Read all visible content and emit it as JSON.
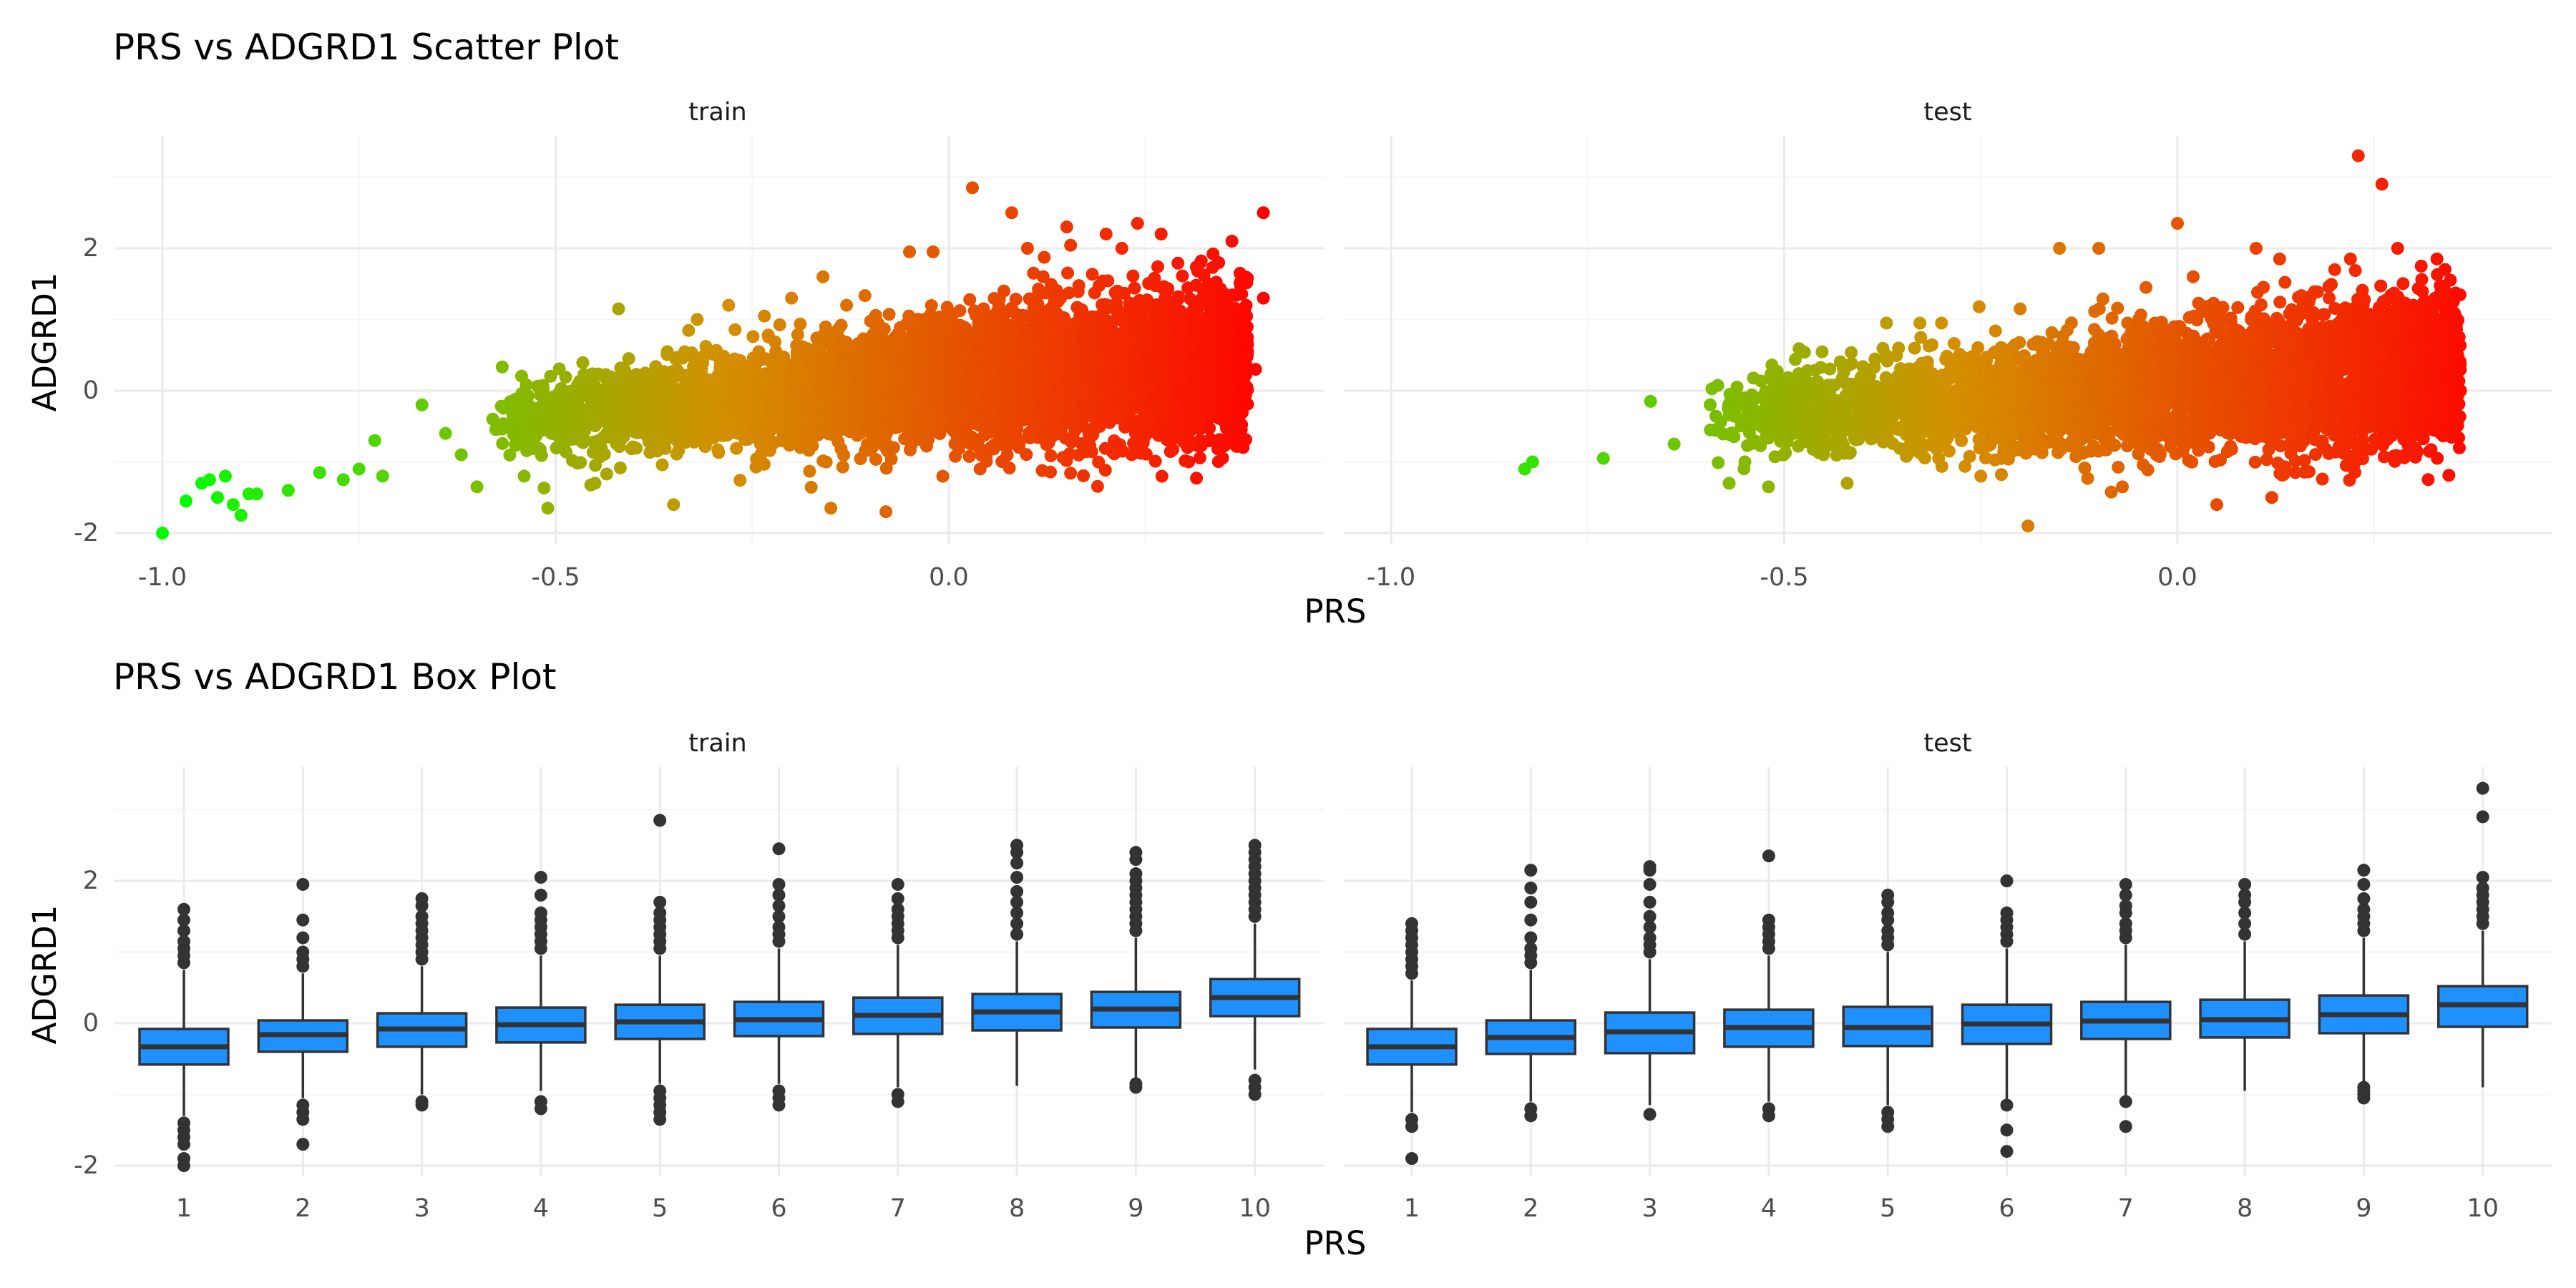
{
  "colors": {
    "grid_major": "#ebebeb",
    "grid_minor": "#f5f5f5",
    "box_fill": "#1e90ff",
    "box_line": "#333333",
    "point_low": "#00ff00",
    "point_mid": "#d39000",
    "point_high": "#ff0000"
  },
  "scatter_title": "PRS vs ADGRD1 Scatter Plot",
  "box_title": "PRS vs ADGRD1 Box Plot",
  "chart_data": [
    {
      "type": "scatter",
      "title": "PRS vs ADGRD1 Scatter Plot",
      "xlabel": "PRS",
      "ylabel": "ADGRD1",
      "facets": [
        "train",
        "test"
      ],
      "xlim": [
        -1.06,
        0.48
      ],
      "ylim": [
        -2.2,
        3.5
      ],
      "x_ticks": [
        -1.0,
        -0.5,
        0.0
      ],
      "x_tick_labels": [
        "-1.0",
        "-0.5",
        "0.0"
      ],
      "y_ticks": [
        -2,
        0,
        2
      ],
      "y_tick_labels": [
        "-2",
        "0",
        "2"
      ],
      "color_scale": {
        "low": "#00ff00",
        "high": "#ff0000",
        "variable": "PRS"
      },
      "grid": true,
      "legend": "none",
      "series": [
        {
          "name": "train",
          "points": [
            [
              -1.0,
              -2.0
            ],
            [
              -0.97,
              -1.55
            ],
            [
              -0.95,
              -1.3
            ],
            [
              -0.94,
              -1.25
            ],
            [
              -0.93,
              -1.5
            ],
            [
              -0.92,
              -1.2
            ],
            [
              -0.91,
              -1.6
            ],
            [
              -0.9,
              -1.75
            ],
            [
              -0.89,
              -1.45
            ],
            [
              -0.88,
              -1.45
            ],
            [
              -0.84,
              -1.4
            ],
            [
              -0.8,
              -1.15
            ],
            [
              -0.77,
              -1.25
            ],
            [
              -0.75,
              -1.1
            ],
            [
              -0.73,
              -0.7
            ],
            [
              -0.72,
              -1.2
            ],
            [
              -0.67,
              -0.2
            ],
            [
              -0.64,
              -0.6
            ],
            [
              -0.62,
              -0.9
            ],
            [
              -0.6,
              -1.35
            ],
            [
              -0.58,
              -0.4
            ],
            [
              -0.54,
              -1.2
            ],
            [
              -0.51,
              -1.65
            ],
            [
              -0.45,
              -1.3
            ],
            [
              -0.42,
              1.15
            ],
            [
              -0.35,
              -1.6
            ],
            [
              -0.32,
              1.0
            ],
            [
              -0.28,
              1.2
            ],
            [
              -0.2,
              1.3
            ],
            [
              -0.16,
              1.6
            ],
            [
              -0.15,
              -1.65
            ],
            [
              -0.13,
              1.2
            ],
            [
              -0.08,
              -1.7
            ],
            [
              -0.05,
              1.95
            ],
            [
              -0.02,
              1.95
            ],
            [
              0.03,
              2.85
            ],
            [
              0.07,
              1.4
            ],
            [
              0.08,
              2.5
            ],
            [
              0.12,
              1.6
            ],
            [
              0.15,
              2.3
            ],
            [
              0.2,
              2.2
            ],
            [
              0.24,
              2.35
            ],
            [
              0.27,
              2.2
            ],
            [
              0.32,
              1.8
            ],
            [
              0.36,
              1.0
            ],
            [
              0.37,
              0.3
            ],
            [
              0.38,
              0.65
            ],
            [
              0.39,
              0.3
            ],
            [
              0.4,
              2.5
            ],
            [
              0.4,
              1.3
            ],
            [
              0.36,
              2.1
            ],
            [
              0.33,
              1.5
            ],
            [
              0.22,
              2.0
            ],
            [
              0.1,
              2.0
            ],
            [
              0.3,
              0.0
            ]
          ]
        },
        {
          "name": "test",
          "points": [
            [
              -0.83,
              -1.1
            ],
            [
              -0.82,
              -1.0
            ],
            [
              -0.73,
              -0.95
            ],
            [
              -0.67,
              -0.15
            ],
            [
              -0.64,
              -0.75
            ],
            [
              -0.57,
              -1.3
            ],
            [
              -0.56,
              0.05
            ],
            [
              -0.55,
              -1.0
            ],
            [
              -0.52,
              -1.35
            ],
            [
              -0.45,
              -0.9
            ],
            [
              -0.42,
              -1.3
            ],
            [
              -0.37,
              0.95
            ],
            [
              -0.3,
              0.95
            ],
            [
              -0.25,
              -1.2
            ],
            [
              -0.2,
              1.15
            ],
            [
              -0.19,
              -1.9
            ],
            [
              -0.15,
              2.0
            ],
            [
              -0.1,
              2.0
            ],
            [
              -0.07,
              -1.35
            ],
            [
              -0.04,
              1.45
            ],
            [
              0.0,
              2.35
            ],
            [
              0.02,
              1.6
            ],
            [
              0.05,
              -1.6
            ],
            [
              0.1,
              2.0
            ],
            [
              0.12,
              -1.5
            ],
            [
              0.13,
              1.85
            ],
            [
              0.2,
              1.7
            ],
            [
              0.22,
              1.85
            ],
            [
              0.23,
              3.3
            ],
            [
              0.26,
              2.9
            ],
            [
              0.31,
              1.75
            ],
            [
              0.33,
              1.85
            ],
            [
              0.34,
              -0.55
            ],
            [
              0.35,
              0.5
            ],
            [
              0.36,
              0.0
            ],
            [
              0.34,
              1.15
            ],
            [
              0.28,
              2.0
            ],
            [
              0.3,
              1.2
            ],
            [
              0.15,
              -1.15
            ],
            [
              0.3,
              -0.5
            ]
          ]
        }
      ],
      "density_clusters": [
        {
          "facet": "train",
          "x": [
            -0.58,
            0.38
          ],
          "center_slope": 0.9,
          "center_intercept": 0.1,
          "spread": 0.45,
          "n": 5000
        },
        {
          "facet": "test",
          "x": [
            -0.6,
            0.36
          ],
          "center_slope": 0.75,
          "center_intercept": 0.05,
          "spread": 0.45,
          "n": 4000
        }
      ]
    },
    {
      "type": "box",
      "title": "PRS vs ADGRD1 Box Plot",
      "xlabel": "PRS",
      "ylabel": "ADGRD1",
      "facets": [
        "train",
        "test"
      ],
      "categories": [
        "1",
        "2",
        "3",
        "4",
        "5",
        "6",
        "7",
        "8",
        "9",
        "10"
      ],
      "ylim": [
        -2.2,
        3.5
      ],
      "y_ticks": [
        -2,
        0,
        2
      ],
      "y_tick_labels": [
        "-2",
        "0",
        "2"
      ],
      "grid": true,
      "legend": "none",
      "series": [
        {
          "name": "train",
          "boxes": [
            {
              "q1": -0.58,
              "median": -0.33,
              "q3": -0.08,
              "lo": -1.3,
              "hi": 0.75,
              "outliers_low": [
                -1.4,
                -1.5,
                -1.6,
                -1.7,
                -1.9,
                -2.0
              ],
              "outliers_high": [
                0.85,
                0.95,
                1.05,
                1.15,
                1.3,
                1.45,
                1.6
              ]
            },
            {
              "q1": -0.4,
              "median": -0.16,
              "q3": 0.04,
              "lo": -1.05,
              "hi": 0.7,
              "outliers_low": [
                -1.15,
                -1.25,
                -1.35,
                -1.7
              ],
              "outliers_high": [
                0.8,
                0.9,
                1.0,
                1.2,
                1.45,
                1.95
              ]
            },
            {
              "q1": -0.33,
              "median": -0.08,
              "q3": 0.14,
              "lo": -1.0,
              "hi": 0.8,
              "outliers_low": [
                -1.1,
                -1.15
              ],
              "outliers_high": [
                0.9,
                1.0,
                1.1,
                1.2,
                1.3,
                1.4,
                1.5,
                1.65,
                1.75
              ]
            },
            {
              "q1": -0.27,
              "median": -0.02,
              "q3": 0.22,
              "lo": -0.95,
              "hi": 0.95,
              "outliers_low": [
                -1.1,
                -1.2
              ],
              "outliers_high": [
                1.05,
                1.15,
                1.25,
                1.35,
                1.45,
                1.55,
                1.8,
                2.05
              ]
            },
            {
              "q1": -0.22,
              "median": 0.02,
              "q3": 0.26,
              "lo": -0.85,
              "hi": 0.95,
              "outliers_low": [
                -0.95,
                -1.05,
                -1.15,
                -1.25,
                -1.35
              ],
              "outliers_high": [
                1.05,
                1.15,
                1.25,
                1.35,
                1.45,
                1.55,
                1.7,
                2.85
              ]
            },
            {
              "q1": -0.18,
              "median": 0.05,
              "q3": 0.3,
              "lo": -0.85,
              "hi": 1.05,
              "outliers_low": [
                -0.95,
                -1.05,
                -1.15
              ],
              "outliers_high": [
                1.15,
                1.25,
                1.35,
                1.5,
                1.65,
                1.8,
                1.95,
                2.45
              ]
            },
            {
              "q1": -0.15,
              "median": 0.11,
              "q3": 0.36,
              "lo": -0.9,
              "hi": 1.1,
              "outliers_low": [
                -1.0,
                -1.1
              ],
              "outliers_high": [
                1.2,
                1.3,
                1.4,
                1.5,
                1.6,
                1.75,
                1.95
              ]
            },
            {
              "q1": -0.1,
              "median": 0.16,
              "q3": 0.41,
              "lo": -0.88,
              "hi": 1.15,
              "outliers_low": [],
              "outliers_high": [
                1.25,
                1.4,
                1.55,
                1.7,
                1.85,
                2.05,
                2.25,
                2.4,
                2.5
              ]
            },
            {
              "q1": -0.06,
              "median": 0.2,
              "q3": 0.44,
              "lo": -0.8,
              "hi": 1.2,
              "outliers_low": [
                -0.85,
                -0.9
              ],
              "outliers_high": [
                1.3,
                1.4,
                1.5,
                1.6,
                1.7,
                1.8,
                1.9,
                2.0,
                2.1,
                2.3,
                2.4
              ]
            },
            {
              "q1": 0.1,
              "median": 0.36,
              "q3": 0.62,
              "lo": -0.65,
              "hi": 1.4,
              "outliers_low": [
                -0.8,
                -0.9,
                -1.0
              ],
              "outliers_high": [
                1.5,
                1.6,
                1.7,
                1.8,
                1.9,
                2.0,
                2.1,
                2.2,
                2.3,
                2.4,
                2.5
              ]
            }
          ]
        },
        {
          "name": "test",
          "boxes": [
            {
              "q1": -0.58,
              "median": -0.33,
              "q3": -0.08,
              "lo": -1.25,
              "hi": 0.6,
              "outliers_low": [
                -1.35,
                -1.45,
                -1.9
              ],
              "outliers_high": [
                0.7,
                0.8,
                0.9,
                1.0,
                1.1,
                1.2,
                1.3,
                1.4
              ]
            },
            {
              "q1": -0.43,
              "median": -0.2,
              "q3": 0.04,
              "lo": -1.1,
              "hi": 0.75,
              "outliers_low": [
                -1.2,
                -1.3
              ],
              "outliers_high": [
                0.85,
                0.95,
                1.05,
                1.2,
                1.45,
                1.7,
                1.9,
                2.15
              ]
            },
            {
              "q1": -0.42,
              "median": -0.12,
              "q3": 0.15,
              "lo": -1.15,
              "hi": 0.9,
              "outliers_low": [
                -1.28
              ],
              "outliers_high": [
                1.0,
                1.1,
                1.2,
                1.35,
                1.5,
                1.7,
                1.95,
                2.15,
                2.2
              ]
            },
            {
              "q1": -0.33,
              "median": -0.06,
              "q3": 0.19,
              "lo": -1.1,
              "hi": 0.95,
              "outliers_low": [
                -1.2,
                -1.3
              ],
              "outliers_high": [
                1.05,
                1.15,
                1.25,
                1.35,
                1.45,
                2.35
              ]
            },
            {
              "q1": -0.32,
              "median": -0.06,
              "q3": 0.23,
              "lo": -1.15,
              "hi": 1.0,
              "outliers_low": [
                -1.25,
                -1.35,
                -1.45
              ],
              "outliers_high": [
                1.1,
                1.2,
                1.3,
                1.45,
                1.55,
                1.7,
                1.8
              ]
            },
            {
              "q1": -0.29,
              "median": -0.01,
              "q3": 0.26,
              "lo": -1.1,
              "hi": 1.05,
              "outliers_low": [
                -1.15,
                -1.5,
                -1.8
              ],
              "outliers_high": [
                1.15,
                1.25,
                1.35,
                1.45,
                1.55,
                2.0
              ]
            },
            {
              "q1": -0.22,
              "median": 0.03,
              "q3": 0.3,
              "lo": -1.05,
              "hi": 1.1,
              "outliers_low": [
                -1.1,
                -1.45
              ],
              "outliers_high": [
                1.2,
                1.3,
                1.4,
                1.55,
                1.65,
                1.8,
                1.95
              ]
            },
            {
              "q1": -0.2,
              "median": 0.05,
              "q3": 0.33,
              "lo": -0.95,
              "hi": 1.15,
              "outliers_low": [],
              "outliers_high": [
                1.25,
                1.4,
                1.55,
                1.7,
                1.8,
                1.95
              ]
            },
            {
              "q1": -0.14,
              "median": 0.12,
              "q3": 0.39,
              "lo": -0.85,
              "hi": 1.2,
              "outliers_low": [
                -0.9,
                -0.95,
                -1.0,
                -1.05
              ],
              "outliers_high": [
                1.3,
                1.4,
                1.5,
                1.6,
                1.75,
                1.95,
                2.15
              ]
            },
            {
              "q1": -0.05,
              "median": 0.26,
              "q3": 0.52,
              "lo": -0.9,
              "hi": 1.3,
              "outliers_low": [],
              "outliers_high": [
                1.4,
                1.5,
                1.6,
                1.7,
                1.8,
                1.9,
                2.05,
                2.9,
                3.3
              ]
            }
          ]
        }
      ]
    }
  ]
}
